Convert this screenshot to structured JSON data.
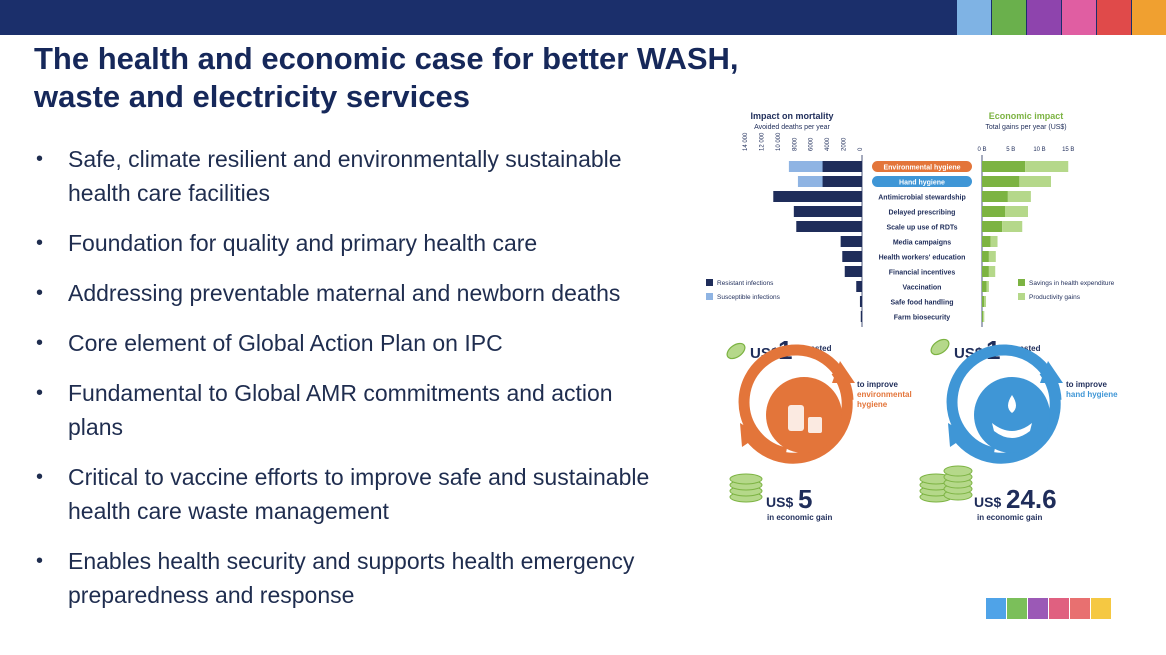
{
  "colors": {
    "navy": "#1b2f6b",
    "title": "#16285a",
    "swatches": [
      "#7fb3e4",
      "#6ab04c",
      "#8e44ad",
      "#e05ea2",
      "#e04a4a",
      "#f0a030"
    ],
    "bottom_swatches": [
      "#4fa3e8",
      "#7bbf5a",
      "#9b59b6",
      "#e06080",
      "#e87070",
      "#f5c842"
    ],
    "resistant": "#1f2d5a",
    "susceptible": "#8fb4e3",
    "savings": "#7cb342",
    "productivity": "#b5d88a",
    "env_orange": "#e3753a",
    "hand_blue": "#3f96d6"
  },
  "slide": {
    "title_line1": "The health and economic case for better WASH,",
    "title_line2": "waste and electricity services",
    "bullets": [
      "Safe, climate resilient and environmentally sustainable health care facilities",
      "Foundation for quality and primary health care",
      "Addressing preventable maternal and newborn deaths",
      "Core element of Global Action Plan on IPC",
      "Fundamental to Global AMR commitments and action plans",
      "Critical to vaccine efforts to improve safe and sustainable health care waste management",
      "Enables health security and supports health emergency preparedness and response"
    ]
  },
  "chart_data": [
    {
      "type": "bar",
      "title": "Impact on mortality",
      "subtitle": "Avoided deaths per year",
      "orientation": "horizontal-left",
      "xlim": [
        0,
        14000
      ],
      "ticks": [
        "14 000",
        "12 000",
        "10 000",
        "8000",
        "6000",
        "4000",
        "2000",
        "0"
      ],
      "categories": [
        "Environmental hygiene",
        "Hand hygiene",
        "Antimicrobial stewardship",
        "Delayed prescribing",
        "Scale up use of RDTs",
        "Media campaigns",
        "Health workers' education",
        "Financial incentives",
        "Vaccination",
        "Safe food handling",
        "Farm biosecurity"
      ],
      "series": [
        {
          "name": "Resistant infections",
          "values": [
            4800,
            4800,
            10800,
            8300,
            8000,
            2600,
            2400,
            2100,
            700,
            250,
            150
          ]
        },
        {
          "name": "Susceptible infections",
          "values": [
            8900,
            7800,
            0,
            0,
            0,
            0,
            0,
            0,
            400,
            0,
            0
          ]
        }
      ],
      "legend": "bottom-left"
    },
    {
      "type": "bar",
      "title": "Economic impact",
      "subtitle": "Total gains per year (US$)",
      "orientation": "horizontal-right",
      "xlim": [
        0,
        16
      ],
      "ticks": [
        "0 B",
        "5 B",
        "10 B",
        "15 B"
      ],
      "categories": [
        "Environmental hygiene",
        "Hand hygiene",
        "Antimicrobial stewardship",
        "Delayed prescribing",
        "Scale up use of RDTs",
        "Media campaigns",
        "Health workers' education",
        "Financial incentives",
        "Vaccination",
        "Safe food handling",
        "Farm biosecurity"
      ],
      "series": [
        {
          "name": "Savings in health expenditure",
          "values": [
            7.5,
            6.5,
            4.5,
            4,
            3.5,
            1.5,
            1.2,
            1.2,
            0.8,
            0.4,
            0.2
          ]
        },
        {
          "name": "Productivity gains",
          "values": [
            7.5,
            5.5,
            4,
            4,
            3.5,
            1.2,
            1.2,
            1.1,
            0.4,
            0.3,
            0.2
          ]
        }
      ],
      "legend": "bottom-right"
    }
  ],
  "roi": {
    "env": {
      "invest_prefix": "US$",
      "invest_amount": "1",
      "invest_label": "invested",
      "improve_label": "to improve",
      "improve_target_1": "environmental",
      "improve_target_2": "hygiene",
      "gain_prefix": "US$",
      "gain_amount": "5",
      "gain_label": "in economic gain"
    },
    "hand": {
      "invest_prefix": "US$",
      "invest_amount": "1",
      "invest_label": "invested",
      "improve_label": "to improve",
      "improve_target_1": "hand hygiene",
      "gain_prefix": "US$",
      "gain_amount": "24.6",
      "gain_label": "in economic gain"
    }
  }
}
